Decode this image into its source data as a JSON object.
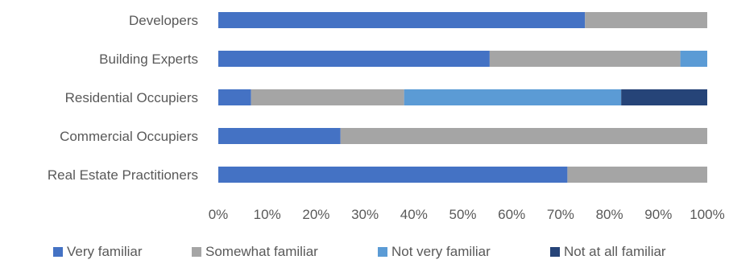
{
  "chart_data": {
    "type": "bar",
    "orientation": "horizontal",
    "stacked": "percent",
    "categories": [
      "Developers",
      "Building Experts",
      "Residential Occupiers",
      "Commercial Occupiers",
      "Real Estate Practitioners"
    ],
    "series": [
      {
        "name": "Very familiar",
        "color": "#4472C4",
        "values": [
          75,
          55.5,
          6.7,
          25,
          71.4
        ]
      },
      {
        "name": "Somewhat familiar",
        "color": "#A5A5A5",
        "values": [
          25,
          39,
          31.3,
          75,
          28.6
        ]
      },
      {
        "name": "Not very familiar",
        "color": "#5B9BD5",
        "values": [
          0,
          5.5,
          44.4,
          0,
          0
        ]
      },
      {
        "name": "Not at all familiar",
        "color": "#264478",
        "values": [
          0,
          0,
          17.6,
          0,
          0
        ]
      }
    ],
    "xlim": [
      0,
      100
    ],
    "xticks": [
      "0%",
      "10%",
      "20%",
      "30%",
      "40%",
      "50%",
      "60%",
      "70%",
      "80%",
      "90%",
      "100%"
    ],
    "grid": false,
    "legend": "bottom"
  }
}
